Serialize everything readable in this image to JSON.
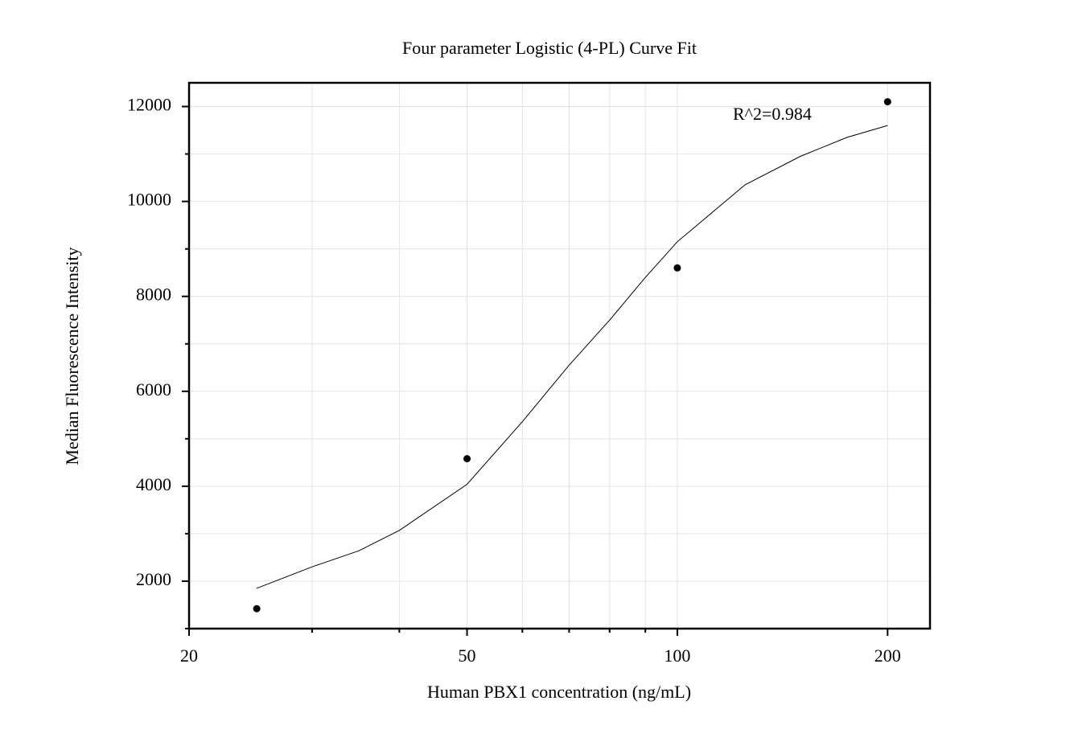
{
  "chart_data": {
    "type": "scatter",
    "title": "Four parameter Logistic (4-PL) Curve Fit",
    "xlabel": "Human PBX1 concentration (ng/mL)",
    "ylabel": "Median Fluorescence Intensity",
    "annotation": "R^2=0.984",
    "xscale": "log",
    "xlim": [
      20,
      230
    ],
    "xticks": [
      20,
      50,
      100,
      200
    ],
    "xminor": [
      30,
      40,
      60,
      70,
      80,
      90
    ],
    "ylim": [
      1000,
      12500
    ],
    "yticks": [
      2000,
      4000,
      6000,
      8000,
      10000,
      12000
    ],
    "yminor": [
      1000,
      3000,
      5000,
      7000,
      9000,
      11000
    ],
    "grid": true,
    "points": {
      "color": "#000000",
      "x": [
        25,
        50,
        100,
        200
      ],
      "values": [
        1420,
        4580,
        8600,
        12100
      ]
    },
    "fit": {
      "color": "#000000",
      "x": [
        25,
        30,
        35,
        40,
        50,
        60,
        70,
        80,
        90,
        100,
        125,
        150,
        175,
        200
      ],
      "values": [
        1850,
        2300,
        2640,
        3070,
        4040,
        5360,
        6550,
        7500,
        8400,
        9150,
        10350,
        10950,
        11350,
        11600
      ]
    }
  }
}
